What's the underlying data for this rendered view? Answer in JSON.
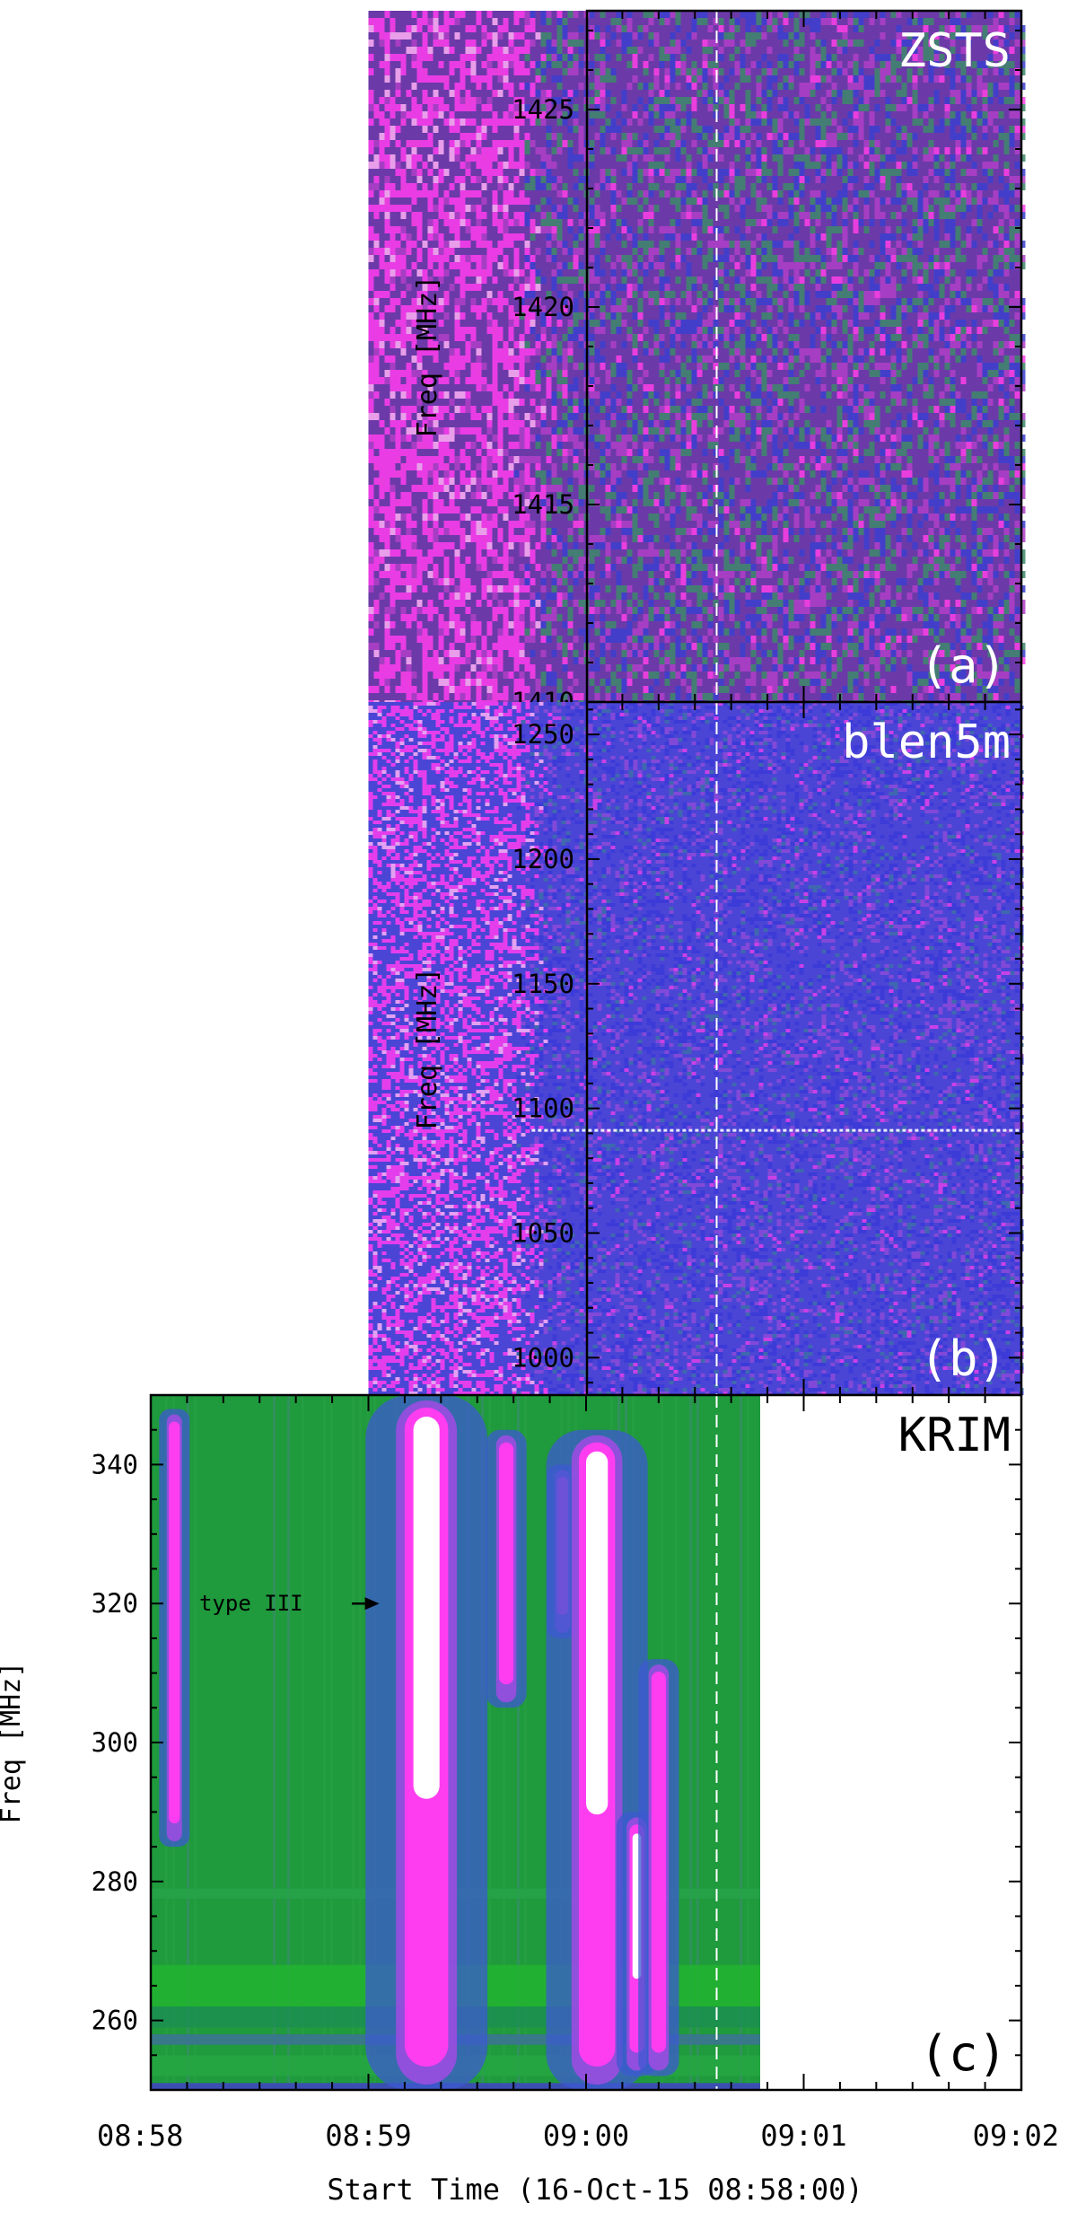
{
  "figure": {
    "xaxis": {
      "label": "Start Time (16-Oct-15 08:58:00)",
      "ticks": [
        "08:58",
        "08:59",
        "09:00",
        "09:01",
        "09:02"
      ]
    },
    "marker_time": "09:00:36",
    "colors": {
      "zsts_bg": "#6b3aa8",
      "blen5m_bg": "#4b45d6",
      "krim_bg": "#1f9a3c",
      "burst": "#ff3df0",
      "burst_core": "#ffffff",
      "marker": "#ffffff",
      "axis": "#000000"
    }
  },
  "chart_data": [
    {
      "type": "heatmap",
      "panel": "(a)",
      "instrument": "ZSTS",
      "ylabel": "Freq [MHz]",
      "ylim": [
        1410,
        1427.5
      ],
      "yticks": [
        1410,
        1415,
        1420,
        1425
      ],
      "xlim": [
        "08:58:00",
        "09:02:00"
      ],
      "data_time_range": [
        "08:59:00",
        "09:02:00"
      ],
      "dashed_marker": "09:00:36",
      "bright_region": {
        "time": [
          "08:59:00",
          "08:59:40"
        ],
        "freq": [
          1410,
          1427.5
        ]
      }
    },
    {
      "type": "heatmap",
      "panel": "(b)",
      "instrument": "blen5m",
      "ylabel": "Freq [MHz]",
      "ylim": [
        985,
        1263
      ],
      "yticks": [
        1000,
        1050,
        1100,
        1150,
        1200,
        1250
      ],
      "xlim": [
        "08:58:00",
        "09:02:00"
      ],
      "data_time_range": [
        "08:59:00",
        "09:02:00"
      ],
      "dashed_marker": "09:00:36",
      "bright_region": {
        "time": [
          "08:59:00",
          "08:59:40"
        ],
        "freq": [
          985,
          1263
        ]
      },
      "interference_line_mhz": 1091
    },
    {
      "type": "heatmap",
      "panel": "(c)",
      "instrument": "KRIM",
      "ylabel": "Freq [MHz]",
      "ylim": [
        250,
        350
      ],
      "yticks": [
        260,
        280,
        300,
        320,
        340
      ],
      "xlim": [
        "08:58:00",
        "09:02:00"
      ],
      "data_time_range": [
        "08:58:00",
        "09:00:48"
      ],
      "dashed_marker": "09:00:36",
      "annotation": {
        "text": "type III",
        "time": "08:59:03",
        "freq": 320
      },
      "bursts": [
        {
          "t_start": "08:58:05",
          "t_end": "08:58:08",
          "f_low": 285,
          "f_high": 348,
          "peak": 0.55
        },
        {
          "t_start": "08:59:10",
          "t_end": "08:59:22",
          "f_low": 250,
          "f_high": 350,
          "peak": 1.0
        },
        {
          "t_start": "08:59:36",
          "t_end": "08:59:40",
          "f_low": 305,
          "f_high": 345,
          "peak": 0.75
        },
        {
          "t_start": "08:59:52",
          "t_end": "08:59:55",
          "f_low": 315,
          "f_high": 340,
          "peak": 0.6
        },
        {
          "t_start": "08:59:58",
          "t_end": "09:00:08",
          "f_low": 250,
          "f_high": 345,
          "peak": 0.95
        },
        {
          "t_start": "09:00:12",
          "t_end": "09:00:16",
          "f_low": 252,
          "f_high": 290,
          "peak": 0.85
        },
        {
          "t_start": "09:00:18",
          "t_end": "09:00:22",
          "f_low": 252,
          "f_high": 312,
          "peak": 0.7
        }
      ]
    }
  ]
}
